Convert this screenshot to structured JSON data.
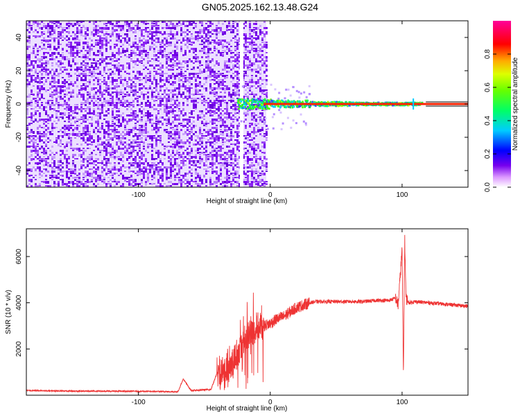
{
  "title": "GN05.2025.162.13.48.G24",
  "colors": {
    "signal": "#ee3333",
    "noise": "#7700ee",
    "frame": "#000000",
    "zero_line": "#000000"
  },
  "chart_data": [
    {
      "type": "heatmap",
      "xlabel": "Height of straight line (km)",
      "ylabel": "Frequency (Hz)",
      "xlim": [
        -185,
        150
      ],
      "ylim": [
        -50,
        50
      ],
      "xticks": [
        -100,
        0,
        100
      ],
      "yticks": [
        -40,
        -20,
        0,
        20,
        40
      ],
      "colorbar": {
        "label": "Normalized spectral amplitude",
        "range": [
          0,
          1
        ],
        "ticks": [
          "0.0",
          "0.2",
          "0.4",
          "0.6",
          "0.8"
        ],
        "colormap": "rainbow (violet to red to magenta)"
      },
      "noise_region_km": [
        -185,
        -3
      ],
      "gap_km": -22,
      "signal_start_km": -25,
      "signal_frequency_hz": 0
    },
    {
      "type": "line",
      "xlabel": "Height of straight line (km)",
      "ylabel": "SNR (10 * v/v)",
      "xlim": [
        -185,
        150
      ],
      "ylim": [
        0,
        7200
      ],
      "xticks": [
        -100,
        0,
        100
      ],
      "yticks": [
        2000,
        4000,
        6000
      ],
      "series": [
        {
          "color": "#ee3333",
          "x": [
            -185,
            -150,
            -100,
            -70,
            -66,
            -60,
            -45,
            -40,
            -35,
            -30,
            -25,
            -20,
            -15,
            -10,
            -5,
            0,
            5,
            10,
            15,
            20,
            25,
            30,
            35,
            40,
            50,
            60,
            70,
            80,
            90,
            95,
            97,
            99,
            100,
            101,
            102,
            103,
            105,
            110,
            120,
            130,
            140,
            150
          ],
          "y": [
            200,
            180,
            170,
            150,
            700,
            200,
            250,
            1000,
            1100,
            1400,
            1800,
            2300,
            2800,
            2900,
            3000,
            3100,
            3300,
            3400,
            3600,
            3800,
            3900,
            4000,
            4050,
            4050,
            4050,
            4050,
            4050,
            4100,
            4100,
            4200,
            3900,
            5500,
            6300,
            800,
            6800,
            4200,
            4000,
            4050,
            4000,
            3950,
            3900,
            3850
          ]
        }
      ]
    }
  ]
}
